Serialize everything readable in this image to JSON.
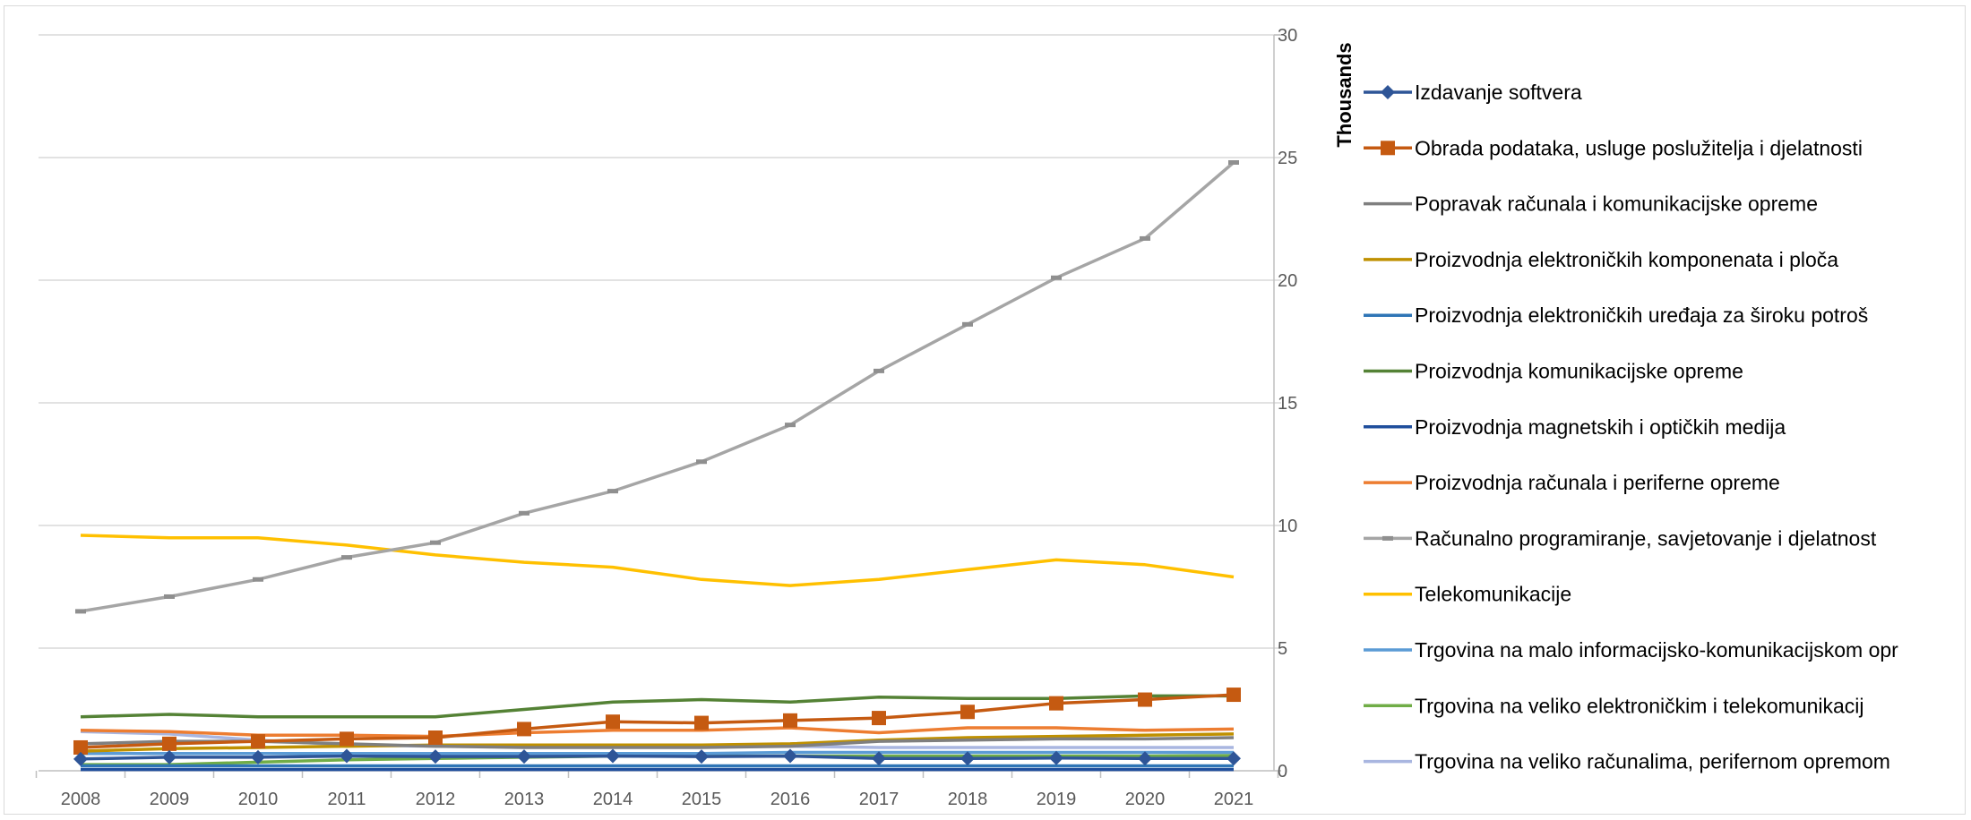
{
  "chart_data": {
    "type": "line",
    "title": "",
    "xlabel": "",
    "ylabel": "Thousands",
    "x": [
      "2008",
      "2009",
      "2010",
      "2011",
      "2012",
      "2013",
      "2014",
      "2015",
      "2016",
      "2017",
      "2018",
      "2019",
      "2020",
      "2021"
    ],
    "ylim": [
      0,
      30
    ],
    "yticks": [
      "0",
      "5",
      "10",
      "15",
      "20",
      "25",
      "30"
    ],
    "y_axis_side": "right",
    "grid": true,
    "legend_position": "right",
    "series": [
      {
        "name": "Izdavanje softvera",
        "color": "#2e5597",
        "marker": "diamond",
        "values": [
          0.48,
          0.55,
          0.55,
          0.6,
          0.58,
          0.58,
          0.6,
          0.58,
          0.6,
          0.5,
          0.5,
          0.52,
          0.5,
          0.5
        ]
      },
      {
        "name": "Obrada podataka, usluge poslužitelja i djelatnosti",
        "color": "#c55a11",
        "marker": "square",
        "values": [
          0.95,
          1.1,
          1.2,
          1.3,
          1.35,
          1.7,
          2.0,
          1.95,
          2.05,
          2.15,
          2.4,
          2.75,
          2.9,
          3.1
        ]
      },
      {
        "name": "Popravak računala i komunikacijske opreme",
        "color": "#7f7f7f",
        "marker": "none",
        "values": [
          1.1,
          1.2,
          1.2,
          1.1,
          1.0,
          0.95,
          0.95,
          0.95,
          1.0,
          1.2,
          1.25,
          1.3,
          1.3,
          1.35
        ]
      },
      {
        "name": "Proizvodnja elektroničkih komponenata i ploča",
        "color": "#bf9000",
        "marker": "none",
        "values": [
          0.8,
          0.9,
          0.95,
          1.0,
          1.05,
          1.05,
          1.05,
          1.05,
          1.1,
          1.25,
          1.35,
          1.4,
          1.45,
          1.5
        ]
      },
      {
        "name": "Proizvodnja elektroničkih uređaja za široku potroš",
        "color": "#2e75b6",
        "marker": "none",
        "values": [
          0.2,
          0.2,
          0.2,
          0.2,
          0.2,
          0.2,
          0.2,
          0.2,
          0.2,
          0.2,
          0.2,
          0.2,
          0.2,
          0.2
        ]
      },
      {
        "name": "Proizvodnja komunikacijske opreme",
        "color": "#548235",
        "marker": "none",
        "values": [
          2.2,
          2.3,
          2.2,
          2.2,
          2.2,
          2.5,
          2.8,
          2.9,
          2.8,
          3.0,
          2.95,
          2.95,
          3.05,
          3.05
        ]
      },
      {
        "name": "Proizvodnja magnetskih i optičkih medija",
        "color": "#1f4e9c",
        "marker": "none",
        "values": [
          0.05,
          0.05,
          0.05,
          0.05,
          0.05,
          0.05,
          0.05,
          0.05,
          0.05,
          0.05,
          0.05,
          0.05,
          0.05,
          0.05
        ]
      },
      {
        "name": "Proizvodnja računala i periferne opreme",
        "color": "#ed7d31",
        "marker": "none",
        "values": [
          1.65,
          1.6,
          1.45,
          1.45,
          1.4,
          1.55,
          1.65,
          1.65,
          1.75,
          1.55,
          1.75,
          1.75,
          1.65,
          1.7
        ]
      },
      {
        "name": "Računalno programiranje, savjetovanje i djelatnost",
        "color": "#a5a5a5",
        "marker": "dash",
        "values": [
          6.5,
          7.1,
          7.8,
          8.7,
          9.3,
          10.5,
          11.4,
          12.6,
          14.1,
          16.3,
          18.2,
          20.1,
          21.7,
          24.8
        ]
      },
      {
        "name": "Telekomunikacije",
        "color": "#ffc000",
        "marker": "none",
        "values": [
          9.6,
          9.5,
          9.5,
          9.2,
          8.8,
          8.5,
          8.3,
          7.8,
          7.55,
          7.8,
          8.2,
          8.6,
          8.4,
          7.9
        ]
      },
      {
        "name": "Trgovina na malo informacijsko-komunikacijskom opr",
        "color": "#5b9bd5",
        "marker": "none",
        "values": [
          0.7,
          0.7,
          0.7,
          0.7,
          0.7,
          0.7,
          0.7,
          0.7,
          0.75,
          0.75,
          0.75,
          0.75,
          0.75,
          0.75
        ]
      },
      {
        "name": "Trgovina na veliko elektroničkim i telekomunikacij",
        "color": "#70ad47",
        "marker": "none",
        "values": [
          0.25,
          0.25,
          0.35,
          0.45,
          0.5,
          0.55,
          0.6,
          0.6,
          0.6,
          0.6,
          0.6,
          0.6,
          0.6,
          0.62
        ]
      },
      {
        "name": "Trgovina na veliko računalima, perifernom opremom",
        "color": "#a9b6e0",
        "marker": "none",
        "values": [
          1.6,
          1.5,
          1.25,
          1.05,
          1.0,
          1.0,
          1.0,
          1.0,
          1.0,
          0.95,
          0.95,
          0.95,
          0.95,
          0.95
        ]
      }
    ]
  }
}
